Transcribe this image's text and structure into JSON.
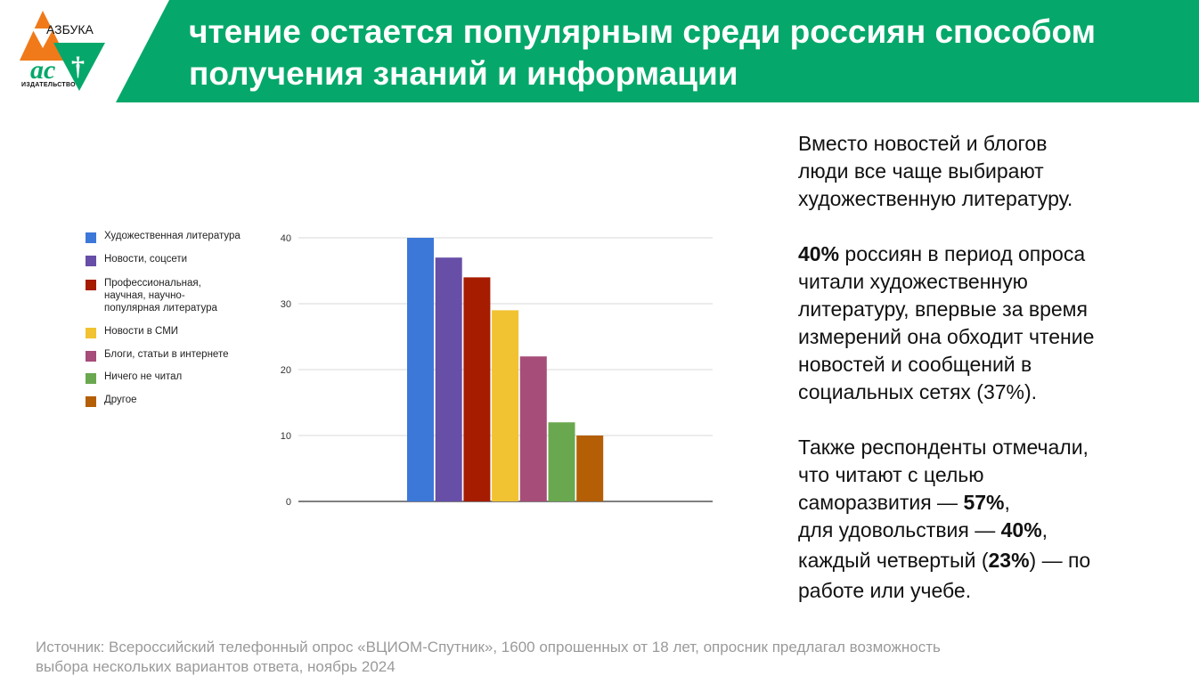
{
  "logo": {
    "top_text": "АЗБУКА",
    "bottom_text": "ИЗДАТЕЛЬСТВО",
    "colors": {
      "orange": "#f07a1a",
      "green": "#05a86a"
    }
  },
  "header": {
    "title_line1": "чтение остается популярным среди россиян способом",
    "title_line2": "получения знаний и информации",
    "band_color": "#05a86a"
  },
  "chart_data": {
    "type": "bar",
    "categories": [
      "Художественная литература",
      "Новости, соцсети",
      "Профессиональная, научная, научно-популярная литература",
      "Новости в СМИ",
      "Блоги, статьи в интернете",
      "Ничего не читал",
      "Другое"
    ],
    "values": [
      40,
      37,
      34,
      29,
      22,
      12,
      10
    ],
    "colors": [
      "#3c78d8",
      "#674ea7",
      "#a61c00",
      "#f1c232",
      "#a64d79",
      "#6aa84f",
      "#b45f06"
    ],
    "yticks": [
      0,
      10,
      20,
      30,
      40
    ],
    "ylim": [
      0,
      40
    ],
    "grid": true,
    "legend_position": "left"
  },
  "legend": {
    "items": [
      {
        "lines": [
          "Художественная литература"
        ]
      },
      {
        "lines": [
          "Новости, соцсети"
        ]
      },
      {
        "lines": [
          "Профессиональная,",
          "научная, научно-",
          "популярная литература"
        ]
      },
      {
        "lines": [
          "Новости в СМИ"
        ]
      },
      {
        "lines": [
          "Блоги, статьи в интернете"
        ]
      },
      {
        "lines": [
          "Ничего не читал"
        ]
      },
      {
        "lines": [
          "Другое"
        ]
      }
    ]
  },
  "side": {
    "p1": [
      "Вместо новостей и блогов",
      "люди все чаще выбирают",
      "художественную литературу."
    ],
    "p2_bold": "40%",
    "p2_lines": [
      " россиян в период опроса",
      "читали художественную",
      "литературу, впервые за время",
      "измерений она обходит чтение",
      "новостей и сообщений в",
      "социальных сетях (37%)."
    ],
    "p3_lines": [
      "Также респонденты отмечали,",
      "что читают с целью"
    ],
    "p3_self": "саморазвития — ",
    "p3_self_val": "57%",
    "p3_self_end": ",",
    "p3_pleasure": "для удовольствия — ",
    "p3_pleasure_val": "40%",
    "p3_pleasure_end": ",",
    "p3_quarter": "каждый четвертый (",
    "p3_quarter_val": "23%",
    "p3_quarter_end": ") — по",
    "p3_last": "работе или учебе."
  },
  "footer": {
    "source_line1": "Источник: Всероссийский телефонный опрос «ВЦИОМ-Спутник», 1600 опрошенных от 18 лет, опросник предлагал возможность",
    "source_line2": "выбора нескольких вариантов ответа, ноябрь 2024"
  }
}
